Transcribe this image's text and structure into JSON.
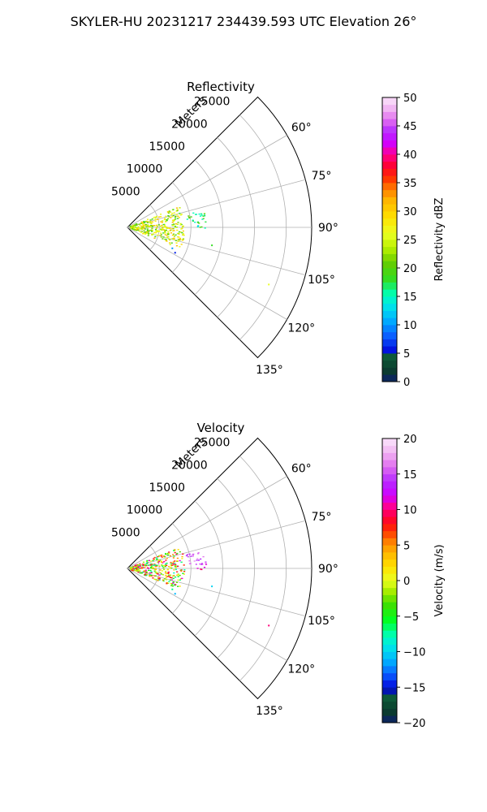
{
  "figure_title": "SKYLER-HU  20231217  234439.593 UTC Elevation 26°",
  "chart_data": [
    {
      "type": "polar-sector",
      "title": "Reflectivity",
      "radial_label": "Meters",
      "radial_ticks": [
        5000,
        10000,
        15000,
        20000,
        25000
      ],
      "radial_tick_labels": [
        "5000",
        "10000",
        "15000",
        "20000",
        "25000"
      ],
      "rmax": 29000,
      "theta_range_deg": [
        45,
        135
      ],
      "theta_ticks_deg": [
        60,
        75,
        90,
        105,
        120,
        135
      ],
      "theta_tick_labels": [
        "60°",
        "75°",
        "90°",
        "105°",
        "120°",
        "135°"
      ],
      "grid": true,
      "colorbar": {
        "label": "Reflectivity dBZ",
        "range": [
          0,
          50
        ],
        "ticks": [
          0,
          5,
          10,
          15,
          20,
          25,
          30,
          35,
          40,
          45,
          50
        ],
        "tick_labels": [
          "0",
          "5",
          "10",
          "15",
          "20",
          "25",
          "30",
          "35",
          "40",
          "45",
          "50"
        ]
      },
      "clusters": [
        {
          "r_range": [
            500,
            9000
          ],
          "theta_range": [
            68,
            112
          ],
          "value_range": [
            18,
            32
          ]
        },
        {
          "r_range": [
            9500,
            12500
          ],
          "theta_range": [
            77,
            87
          ],
          "value_range": [
            14,
            22
          ]
        },
        {
          "r_range": [
            11000,
            12500
          ],
          "theta_range": [
            87,
            91
          ],
          "value_range": [
            10,
            20
          ]
        }
      ],
      "isolated": [
        {
          "r": 7800,
          "theta": 115,
          "value": 10
        },
        {
          "r": 8500,
          "theta": 118,
          "value": 6
        },
        {
          "r": 13600,
          "theta": 102,
          "value": 18
        },
        {
          "r": 24000,
          "theta": 112,
          "value": 26
        }
      ]
    },
    {
      "type": "polar-sector",
      "title": "Velocity",
      "radial_label": "Meters",
      "radial_ticks": [
        5000,
        10000,
        15000,
        20000,
        25000
      ],
      "radial_tick_labels": [
        "5000",
        "10000",
        "15000",
        "20000",
        "25000"
      ],
      "rmax": 29000,
      "theta_range_deg": [
        45,
        135
      ],
      "theta_ticks_deg": [
        60,
        75,
        90,
        105,
        120,
        135
      ],
      "theta_tick_labels": [
        "60°",
        "75°",
        "90°",
        "105°",
        "120°",
        "135°"
      ],
      "grid": true,
      "colorbar": {
        "label": "Velocity (m/s)",
        "range": [
          -20,
          20
        ],
        "ticks": [
          -20,
          -15,
          -10,
          -5,
          0,
          5,
          10,
          15,
          20
        ],
        "tick_labels": [
          "−20",
          "−15",
          "−10",
          "−5",
          "0",
          "5",
          "10",
          "15",
          "20"
        ]
      },
      "clusters": [
        {
          "r_range": [
            500,
            9000
          ],
          "theta_range": [
            68,
            112
          ],
          "value_range": [
            -8,
            12
          ]
        },
        {
          "r_range": [
            9500,
            12500
          ],
          "theta_range": [
            77,
            87
          ],
          "value_range": [
            13,
            17
          ]
        },
        {
          "r_range": [
            11000,
            12500
          ],
          "theta_range": [
            87,
            91
          ],
          "value_range": [
            9,
            12
          ]
        }
      ],
      "isolated": [
        {
          "r": 7800,
          "theta": 115,
          "value": -7
        },
        {
          "r": 8500,
          "theta": 118,
          "value": -11
        },
        {
          "r": 13600,
          "theta": 102,
          "value": -10
        },
        {
          "r": 24000,
          "theta": 112,
          "value": 10
        }
      ]
    }
  ]
}
